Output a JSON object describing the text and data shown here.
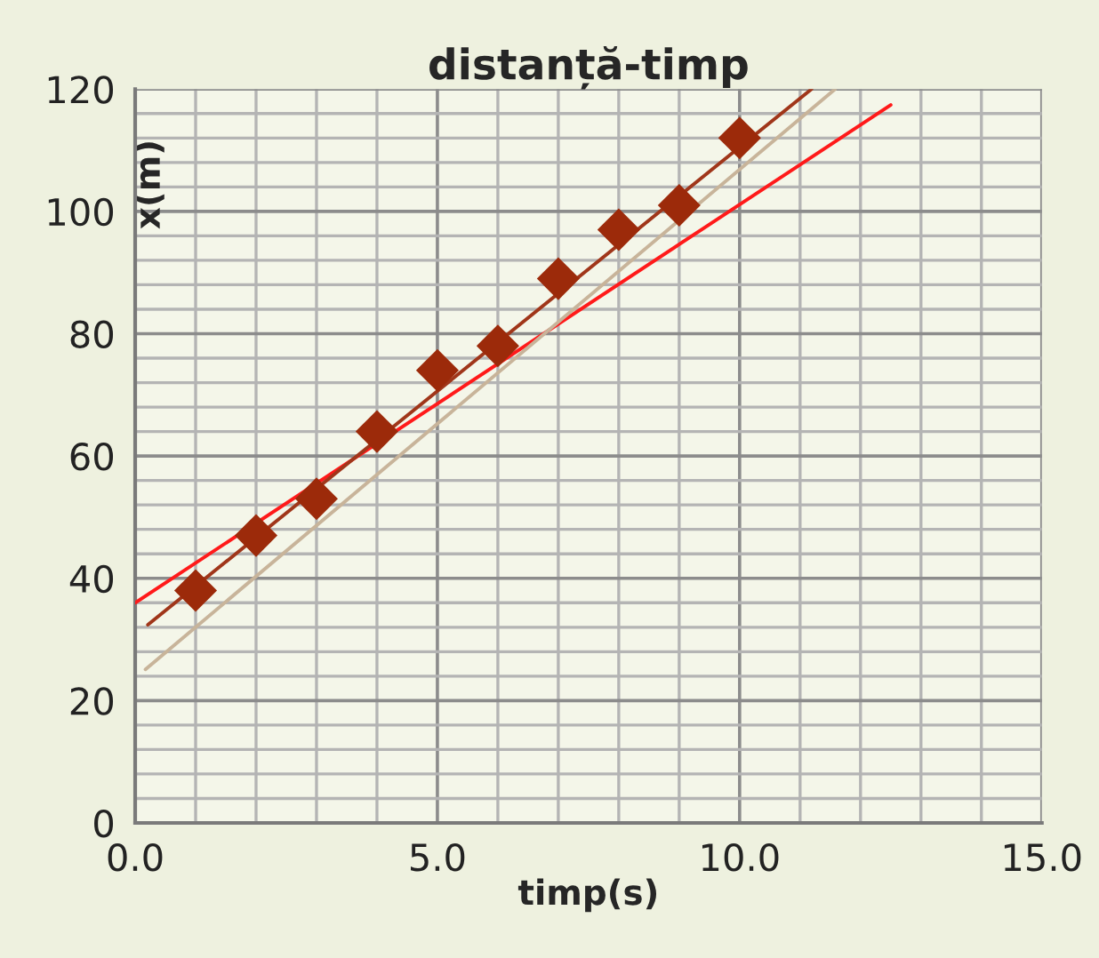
{
  "chart_data": {
    "type": "scatter",
    "title": "distanță-timp",
    "xlabel": "timp(s)",
    "ylabel": "x(m)",
    "xlim": [
      0,
      15
    ],
    "xticks": [
      {
        "value": 0,
        "label": "0.0"
      },
      {
        "value": 5,
        "label": "5.0"
      },
      {
        "value": 10,
        "label": "10.0"
      },
      {
        "value": 15,
        "label": "15.0"
      }
    ],
    "ylim": [
      0,
      120
    ],
    "yticks": [
      0,
      20,
      40,
      60,
      80,
      100,
      120
    ],
    "grid": true,
    "marker": "diamond",
    "series": [
      {
        "type": "line",
        "color": "#ff1a1a",
        "x": [
          0,
          12.5
        ],
        "values": [
          36,
          117.4
        ],
        "marker": "none"
      },
      {
        "type": "line",
        "color": "#c8b49a",
        "x": [
          0.17,
          11.58
        ],
        "values": [
          25.1,
          120
        ],
        "marker": "none"
      },
      {
        "type": "line",
        "color": "#a0361a",
        "x": [
          0.21,
          11.19
        ],
        "values": [
          32.4,
          120
        ],
        "marker": "none"
      },
      {
        "color": "#9c2a0a",
        "x": [
          1,
          2,
          3,
          4,
          5,
          6,
          7,
          8,
          9,
          10
        ],
        "values": [
          38,
          47,
          53,
          64,
          74,
          78,
          89,
          97,
          101,
          112
        ]
      }
    ]
  }
}
